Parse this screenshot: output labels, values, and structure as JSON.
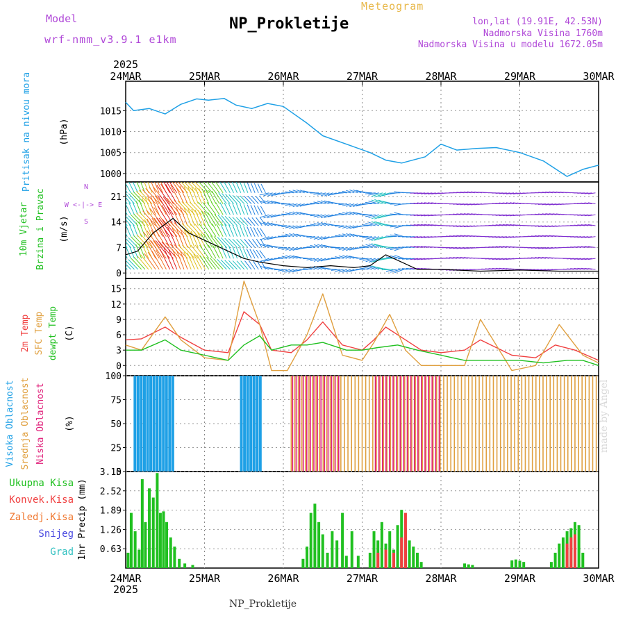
{
  "header": {
    "model_label": "Model",
    "model_name": "wrf-nmm_v3.9.1 e1km",
    "title": "NP_Prokletije",
    "subtitle": "Meteogram",
    "lonlat": "lon,lat (19.91E, 42.53N)",
    "altitude": "Nadmorska Visina 1760m",
    "model_altitude": "Nadmorska Visina u modelu 1672.05m"
  },
  "footer": {
    "station": "NP_Prokletije",
    "watermark": "made by Angel"
  },
  "time_axis": {
    "year": "2025",
    "labels": [
      "24MAR",
      "25MAR",
      "26MAR",
      "27MAR",
      "28MAR",
      "29MAR",
      "30MAR"
    ]
  },
  "panel_labels": {
    "pressure": [
      "Pritisak na nivou mora",
      "(hPa)"
    ],
    "wind": [
      "10m Vjetar",
      "Brzina i Pravac",
      "(m/s)"
    ],
    "wind_compass": [
      "N",
      "W <-|-> E",
      "S"
    ],
    "temp": [
      "2m Temp",
      "SFC Temp",
      "dewpt Temp",
      "(C)"
    ],
    "cloud": [
      "Visoka Oblacnost",
      "Srednja Oblacnost",
      "Niska Oblacnost",
      "(%)"
    ],
    "precip_legend": [
      "Ukupna Kisa",
      "Konvek.Kisa",
      "Zaledj.Kisa",
      "Snijeg",
      "Grad"
    ],
    "precip_axis": "1hr Precip (mm)"
  },
  "colors": {
    "pressure": "#1ea0e6",
    "wind_label": "#20c020",
    "wind_compass": "#b048d8",
    "temp2m": "#f04040",
    "sfc": "#e0a040",
    "dewpt": "#20c020",
    "cloud_high": "#1ea0e6",
    "cloud_mid": "#e0a040",
    "cloud_low": "#e0207a",
    "precip_total": "#20c020",
    "precip_conv": "#f04040",
    "precip_frz": "#f07830",
    "precip_snow": "#4848e0",
    "precip_grad": "#30c0c0",
    "title_year": "#000000"
  },
  "chart_data": [
    {
      "type": "line",
      "name": "pressure",
      "ylabel": "(hPa)",
      "yticks": [
        1000,
        1005,
        1010,
        1015
      ],
      "ylim": [
        998,
        1022
      ],
      "x_days": [
        0,
        0.1,
        0.3,
        0.5,
        0.7,
        0.9,
        1.05,
        1.25,
        1.4,
        1.6,
        1.8,
        2.0,
        2.3,
        2.5,
        2.8,
        3.1,
        3.3,
        3.5,
        3.8,
        4.0,
        4.2,
        4.45,
        4.7,
        5.0,
        5.3,
        5.6,
        5.8,
        6.0
      ],
      "values": [
        1017,
        1015,
        1015.5,
        1014.2,
        1016.5,
        1017.8,
        1017.5,
        1017.9,
        1016.3,
        1015.5,
        1016.7,
        1016,
        1012,
        1009,
        1007,
        1005,
        1003.2,
        1002.5,
        1004,
        1007,
        1005.6,
        1006,
        1006.2,
        1005,
        1003,
        999.3,
        1001,
        1002
      ]
    },
    {
      "type": "line",
      "name": "wind",
      "ylabel": "(m/s)",
      "yticks": [
        0,
        7,
        14,
        21
      ],
      "ylim": [
        -1.5,
        25
      ],
      "x_days": [
        0,
        0.15,
        0.35,
        0.6,
        0.8,
        1.0,
        1.2,
        1.5,
        1.7,
        2.0,
        2.3,
        2.6,
        2.9,
        3.1,
        3.3,
        3.5,
        3.7,
        4.0,
        4.5,
        5.0,
        5.5,
        6.0
      ],
      "values": [
        5,
        6,
        11,
        15,
        11,
        9,
        7,
        4,
        3,
        2,
        1.5,
        2,
        1.5,
        2,
        5,
        3,
        1,
        1,
        0.5,
        0.8,
        0.5,
        0.5
      ]
    },
    {
      "type": "line",
      "name": "temperature",
      "ylabel": "(C)",
      "yticks": [
        0,
        3,
        6,
        9,
        12,
        15
      ],
      "ylim": [
        -2,
        17
      ],
      "series": [
        {
          "name": "2m Temp",
          "x_days": [
            0,
            0.2,
            0.5,
            0.7,
            1.0,
            1.3,
            1.5,
            1.7,
            1.85,
            2.1,
            2.3,
            2.5,
            2.75,
            3.0,
            3.15,
            3.3,
            3.55,
            3.75,
            4.0,
            4.3,
            4.5,
            4.9,
            5.2,
            5.45,
            5.7,
            6.0
          ],
          "values": [
            5,
            5.2,
            7.5,
            5.5,
            3,
            2.5,
            10.5,
            8,
            3,
            2.5,
            5,
            8.5,
            4,
            3,
            5,
            7.5,
            5,
            3,
            2.5,
            3,
            5,
            2,
            1.5,
            4,
            3,
            1
          ]
        },
        {
          "name": "SFC Temp",
          "x_days": [
            0,
            0.2,
            0.5,
            0.7,
            1.0,
            1.3,
            1.5,
            1.7,
            1.85,
            2.05,
            2.3,
            2.5,
            2.75,
            3.0,
            3.15,
            3.35,
            3.55,
            3.75,
            4.0,
            4.3,
            4.5,
            4.9,
            5.2,
            5.5,
            5.8,
            6.0
          ],
          "values": [
            4,
            3,
            9.5,
            5,
            1.5,
            1,
            16.5,
            8,
            -1,
            -1,
            6,
            14,
            2,
            1,
            4.5,
            10,
            3,
            0,
            0,
            0,
            9,
            -1,
            0,
            8,
            2,
            0.5
          ]
        },
        {
          "name": "dewpt Temp",
          "x_days": [
            0,
            0.2,
            0.5,
            0.7,
            1.0,
            1.3,
            1.5,
            1.7,
            1.85,
            2.1,
            2.3,
            2.5,
            2.8,
            3.0,
            3.2,
            3.45,
            3.7,
            4.0,
            4.3,
            4.6,
            5.0,
            5.3,
            5.6,
            5.8,
            6.0
          ],
          "values": [
            3,
            3,
            5,
            3,
            2,
            1,
            4,
            5.8,
            3,
            4,
            4,
            4.5,
            3,
            3,
            3.5,
            4,
            3,
            2,
            1,
            1,
            1,
            0.5,
            1,
            1,
            0
          ]
        }
      ]
    },
    {
      "type": "bar",
      "name": "cloud",
      "ylabel": "(%)",
      "yticks": [
        0,
        25,
        50,
        75,
        100
      ],
      "ylim": [
        0,
        100
      ],
      "series": [
        {
          "name": "Visoka Oblacnost",
          "spans_days": [
            [
              0.1,
              0.6
            ],
            [
              1.45,
              1.7
            ]
          ],
          "values": [
            100,
            100
          ]
        },
        {
          "name": "Srednja Oblacnost",
          "spans_days": [
            [
              2.1,
              6.0
            ]
          ],
          "values": [
            100
          ]
        },
        {
          "name": "Niska Oblacnost",
          "spans_days": [
            [
              2.1,
              2.7
            ],
            [
              3.15,
              4.0
            ]
          ],
          "values": [
            100,
            100
          ]
        }
      ]
    },
    {
      "type": "bar",
      "name": "precip",
      "ylabel": "1hr Precip (mm)",
      "yticks": [
        0.63,
        1.26,
        1.89,
        2.52,
        3.15
      ],
      "ylim": [
        0,
        3.15
      ],
      "series": [
        {
          "name": "Ukupna Kisa",
          "x_days": [
            0.03,
            0.07,
            0.12,
            0.17,
            0.21,
            0.25,
            0.3,
            0.35,
            0.4,
            0.44,
            0.48,
            0.52,
            0.57,
            0.62,
            0.68,
            0.75,
            0.85,
            2.25,
            2.3,
            2.35,
            2.4,
            2.45,
            2.5,
            2.56,
            2.62,
            2.68,
            2.75,
            2.8,
            2.87,
            2.95,
            3.1,
            3.15,
            3.2,
            3.25,
            3.3,
            3.35,
            3.4,
            3.45,
            3.5,
            3.55,
            3.6,
            3.65,
            3.7,
            3.75,
            4.3,
            4.35,
            4.4,
            4.9,
            4.95,
            5.0,
            5.05,
            5.4,
            5.45,
            5.5,
            5.55,
            5.6,
            5.65,
            5.7,
            5.75,
            5.8
          ],
          "values": [
            0.5,
            1.8,
            1.2,
            0.6,
            2.9,
            1.5,
            2.6,
            2.3,
            3.1,
            1.8,
            1.85,
            1.5,
            1.0,
            0.7,
            0.3,
            0.15,
            0.1,
            0.3,
            0.7,
            1.8,
            2.1,
            1.5,
            1.1,
            0.5,
            1.2,
            0.9,
            1.8,
            0.4,
            1.2,
            0.4,
            0.5,
            1.2,
            0.9,
            1.5,
            0.8,
            1.2,
            0.6,
            1.4,
            1.9,
            1.3,
            0.9,
            0.7,
            0.5,
            0.2,
            0.15,
            0.12,
            0.1,
            0.25,
            0.28,
            0.24,
            0.2,
            0.2,
            0.5,
            0.8,
            1.0,
            1.2,
            1.3,
            1.5,
            1.4,
            0.5
          ]
        },
        {
          "name": "Konvek.Kisa",
          "x_days": [
            3.2,
            3.3,
            3.4,
            3.5,
            3.55,
            5.6,
            5.65,
            5.7
          ],
          "values": [
            0.5,
            0.6,
            0.5,
            1.0,
            1.8,
            0.8,
            1.0,
            1.1
          ]
        }
      ]
    }
  ]
}
